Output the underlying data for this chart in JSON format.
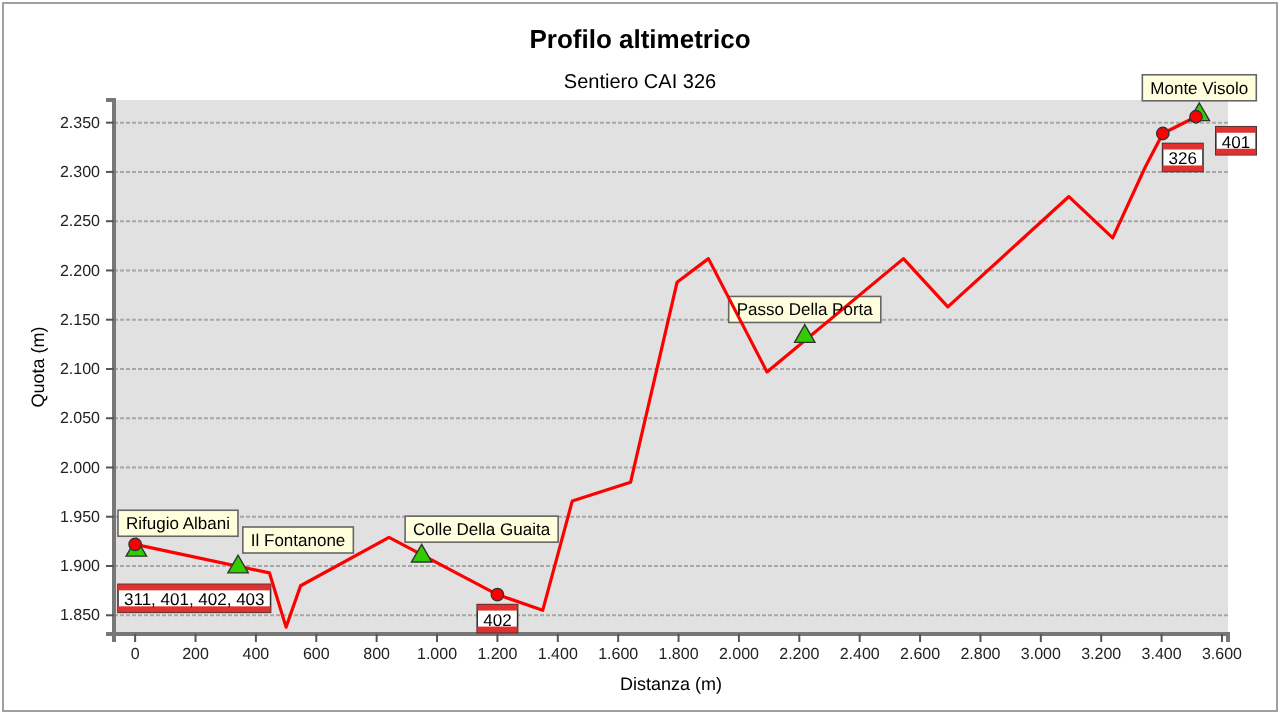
{
  "chart_data": {
    "type": "line",
    "title": "Profilo altimetrico",
    "subtitle": "Sentiero CAI 326",
    "xlabel": "Distanza (m)",
    "ylabel": "Quota (m)",
    "xlim": [
      -70,
      3620
    ],
    "ylim": [
      1831,
      2373
    ],
    "xticks": [
      0,
      200,
      400,
      600,
      800,
      {
        "value": 1000,
        "label": "1.000"
      },
      {
        "value": 1200,
        "label": "1.200"
      },
      {
        "value": 1400,
        "label": "1.400"
      },
      {
        "value": 1600,
        "label": "1.600"
      },
      {
        "value": 1800,
        "label": "1.800"
      },
      {
        "value": 2000,
        "label": "2.000"
      },
      {
        "value": 2200,
        "label": "2.200"
      },
      {
        "value": 2400,
        "label": "2.400"
      },
      {
        "value": 2600,
        "label": "2.600"
      },
      {
        "value": 2800,
        "label": "2.800"
      },
      {
        "value": 3000,
        "label": "3.000"
      },
      {
        "value": 3200,
        "label": "3.200"
      },
      {
        "value": 3400,
        "label": "3.400"
      },
      {
        "value": 3600,
        "label": "3.600"
      }
    ],
    "yticks": [
      {
        "value": 1850,
        "label": "1.850"
      },
      {
        "value": 1900,
        "label": "1.900"
      },
      {
        "value": 1950,
        "label": "1.950"
      },
      {
        "value": 2000,
        "label": "2.000"
      },
      {
        "value": 2050,
        "label": "2.050"
      },
      {
        "value": 2100,
        "label": "2.100"
      },
      {
        "value": 2150,
        "label": "2.150"
      },
      {
        "value": 2200,
        "label": "2.200"
      },
      {
        "value": 2250,
        "label": "2.250"
      },
      {
        "value": 2300,
        "label": "2.300"
      },
      {
        "value": 2350,
        "label": "2.350"
      }
    ],
    "grid": "y",
    "marker": "none",
    "series": [
      {
        "color": "#ff0000",
        "x": [
          0,
          445,
          500,
          548,
          841,
          1200,
          1350,
          1448,
          1641,
          1795,
          1899,
          2093,
          2545,
          2692,
          3093,
          3238,
          3346,
          3404,
          3514
        ],
        "values": [
          1922,
          1893,
          1838,
          1880,
          1929,
          1871,
          1855,
          1966,
          1985,
          2188,
          2212,
          2097,
          2212,
          2163,
          2275,
          2233,
          2305,
          2339,
          2356
        ]
      },
      {
        "type": "scatter",
        "color": "#33cc00",
        "marker": "triangle",
        "x": [
          4,
          341,
          949,
          2218,
          3525
        ],
        "values": [
          1916,
          1899,
          1910,
          2133,
          2358
        ]
      },
      {
        "type": "scatter",
        "color": "#ff0000",
        "marker": "circle",
        "x": [
          0,
          1200,
          3404,
          3514
        ],
        "values": [
          1922,
          1871,
          2339,
          2356
        ]
      }
    ],
    "annotations": [
      {
        "text": "Rifugio Albani",
        "x": 4,
        "y": 1916
      },
      {
        "text": "311, 401, 402, 403",
        "x": 0,
        "y": 1922
      },
      {
        "text": "Il Fontanone",
        "x": 341,
        "y": 1899
      },
      {
        "text": "Colle Della Guaita",
        "x": 949,
        "y": 1910
      },
      {
        "text": "402",
        "x": 1200,
        "y": 1871
      },
      {
        "text": "Passo Della Porta",
        "x": 2218,
        "y": 2133
      },
      {
        "text": "326",
        "x": 3404,
        "y": 2339
      },
      {
        "text": "401",
        "x": 3514,
        "y": 2356
      },
      {
        "text": "Monte Visolo",
        "x": 3525,
        "y": 2358
      }
    ]
  }
}
